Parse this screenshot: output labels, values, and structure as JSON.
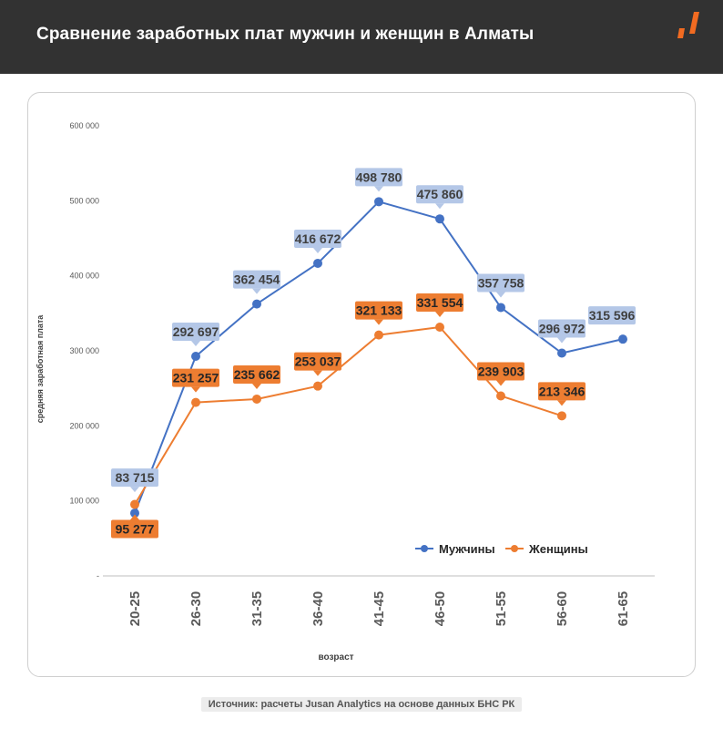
{
  "header": {
    "title": "Сравнение заработных плат мужчин и женщин в Алматы",
    "logo_icon": "brand-logo-icon",
    "logo_color": "#f26b21"
  },
  "source": "Источник: расчеты Jusan Analytics на основе данных БНС РК",
  "chart_data": {
    "type": "line",
    "title": "",
    "xlabel": "возраст",
    "ylabel": "средняя заработная плата",
    "categories": [
      "20-25",
      "26-30",
      "31-35",
      "36-40",
      "41-45",
      "46-50",
      "51-55",
      "56-60",
      "61-65"
    ],
    "ylim": [
      0,
      600000
    ],
    "yticks": [
      0,
      100000,
      200000,
      300000,
      400000,
      500000,
      600000
    ],
    "ytick_labels": [
      "-",
      "100 000",
      "200 000",
      "300 000",
      "400 000",
      "500 000",
      "600 000"
    ],
    "grid": false,
    "legend_position": "bottom-right",
    "series": [
      {
        "name": "Мужчины",
        "color": "#4472c4",
        "label_bg": "#b4c7e7",
        "values": [
          83715,
          292697,
          362454,
          416672,
          498780,
          475860,
          357758,
          296972,
          315596
        ],
        "labels": [
          "83 715",
          "292 697",
          "362 454",
          "416 672",
          "498 780",
          "475 860",
          "357 758",
          "296 972",
          "315 596"
        ]
      },
      {
        "name": "Женщины",
        "color": "#ed7d31",
        "label_bg": "#ed7d31",
        "values": [
          95277,
          231257,
          235662,
          253037,
          321133,
          331554,
          239903,
          213346,
          null
        ],
        "labels": [
          "95 277",
          "231 257",
          "235 662",
          "253 037",
          "321 133",
          "331 554",
          "239 903",
          "213 346",
          ""
        ]
      }
    ]
  }
}
